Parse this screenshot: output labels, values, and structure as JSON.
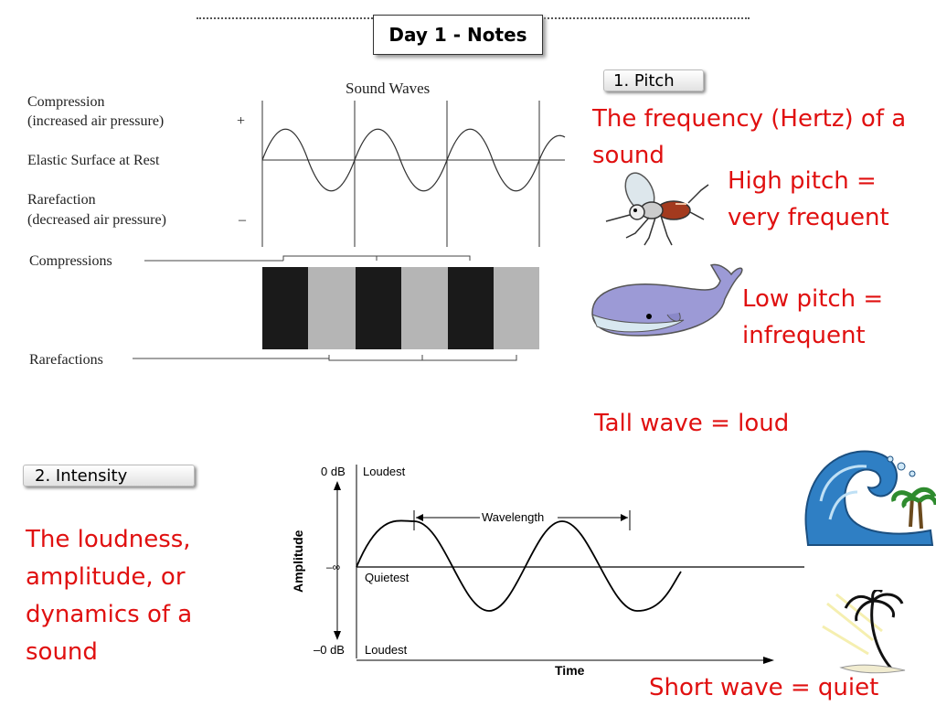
{
  "slide": {
    "title": "Day 1 - Notes"
  },
  "pitch": {
    "tab_label": "1. Pitch",
    "definition": "The frequency (Hertz) of a sound",
    "high": "High pitch = very frequent",
    "low": "Low pitch = infrequent"
  },
  "intensity": {
    "tab_label": "2. Intensity",
    "definition": "The loudness, amplitude, or dynamics of a sound",
    "tall": "Tall wave = loud",
    "short": "Short wave = quiet"
  },
  "sound_diagram": {
    "title": "Sound Waves",
    "compression_label": "Compression",
    "compression_sub": "(increased air pressure)",
    "plus": "+",
    "rest_label": "Elastic Surface at Rest",
    "rarefaction_label": "Rarefaction",
    "rarefaction_sub": "(decreased air pressure)",
    "minus": "–",
    "compressions": "Compressions",
    "rarefactions": "Rarefactions"
  },
  "amplitude_diagram": {
    "top_db": "0 dB",
    "top_label": "Loudest",
    "mid_label": "Quietest",
    "mid_symbol": "–∞",
    "bottom_db": "–0 dB",
    "bottom_label": "Loudest",
    "y_axis": "Amplitude",
    "x_axis": "Time",
    "wavelength": "Wavelength"
  },
  "icons": [
    "mosquito-icon",
    "whale-icon",
    "big-wave-icon",
    "palm-tree-icon"
  ]
}
